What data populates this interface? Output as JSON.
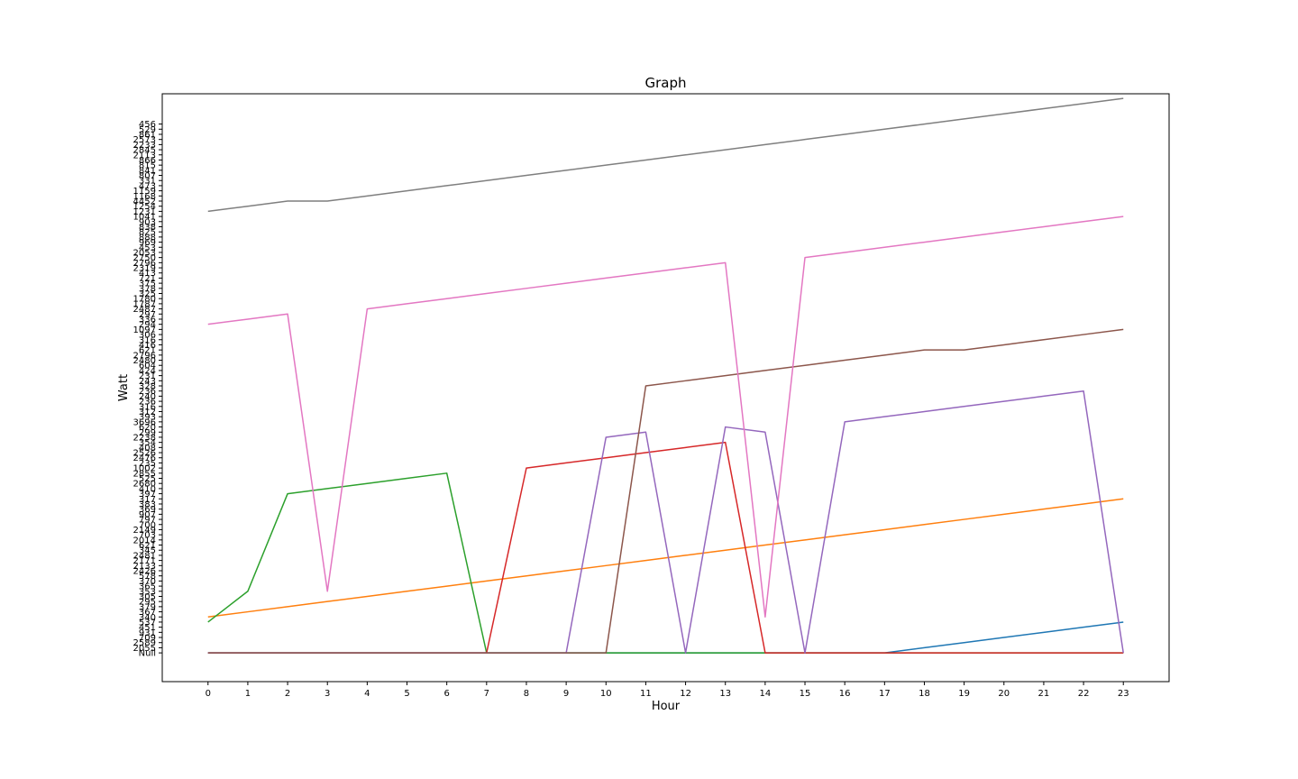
{
  "chart_data": {
    "type": "line",
    "title": "Graph",
    "xlabel": "Hour",
    "ylabel": "Watt",
    "grid": false,
    "legend": "none",
    "x": [
      0,
      1,
      2,
      3,
      4,
      5,
      6,
      7,
      8,
      9,
      10,
      11,
      12,
      13,
      14,
      15,
      16,
      17,
      18,
      19,
      20,
      21,
      22,
      23
    ],
    "xlim": [
      -1.15,
      24.15
    ],
    "ylim": [
      -5.6,
      108.9
    ],
    "y_tick_labels": [
      "Null",
      "2055",
      "2589",
      "709",
      "931",
      "451",
      "537",
      "340",
      "367",
      "379",
      "295",
      "305",
      "353",
      "365",
      "370",
      "578",
      "2426",
      "2133",
      "2171",
      "2481",
      "345",
      "621",
      "2014",
      "703",
      "2149",
      "700",
      "797",
      "907",
      "369",
      "383",
      "317",
      "397",
      "410",
      "2680",
      "525",
      "2855",
      "1002",
      "235",
      "2476",
      "2526",
      "408",
      "354",
      "2238",
      "299",
      "620",
      "3696",
      "393",
      "312",
      "316",
      "236",
      "240",
      "236",
      "328",
      "243",
      "231",
      "424",
      "604",
      "2480",
      "2796",
      "621",
      "416",
      "316",
      "306",
      "1097",
      "294",
      "336",
      "297",
      "2487",
      "1787",
      "1780",
      "325",
      "378",
      "375",
      "721",
      "413",
      "2319",
      "2796",
      "2750",
      "2053",
      "453",
      "969",
      "888",
      "825",
      "838",
      "903",
      "1041",
      "1231",
      "1254",
      "4452",
      "1168",
      "1159",
      "473",
      "331",
      "807",
      "841",
      "815",
      "866",
      "2113",
      "2845",
      "2233",
      "2573",
      "861",
      "529",
      "456"
    ],
    "series": [
      {
        "color": "#1f77b4",
        "values": [
          0,
          0,
          0,
          0,
          0,
          0,
          0,
          0,
          0,
          0,
          0,
          0,
          0,
          0,
          0,
          0,
          0,
          0,
          1,
          2,
          3,
          4,
          5,
          6
        ]
      },
      {
        "color": "#ff7f0e",
        "values": [
          7,
          8,
          9,
          10,
          11,
          12,
          13,
          14,
          15,
          16,
          17,
          18,
          19,
          20,
          21,
          22,
          23,
          24,
          25,
          26,
          27,
          28,
          29,
          30
        ]
      },
      {
        "color": "#2ca02c",
        "values": [
          6,
          12,
          31,
          32,
          33,
          34,
          35,
          0,
          0,
          0,
          0,
          0,
          0,
          0,
          0,
          0,
          0,
          0,
          0,
          0,
          0,
          0,
          0,
          0
        ]
      },
      {
        "color": "#d62728",
        "values": [
          0,
          0,
          0,
          0,
          0,
          0,
          0,
          0,
          36,
          37,
          38,
          39,
          40,
          41,
          0,
          0,
          0,
          0,
          0,
          0,
          0,
          0,
          0,
          0
        ]
      },
      {
        "color": "#9467bd",
        "values": [
          0,
          0,
          0,
          0,
          0,
          0,
          0,
          0,
          0,
          0,
          42,
          43,
          0,
          44,
          43,
          0,
          45,
          46,
          47,
          48,
          49,
          50,
          51,
          0
        ]
      },
      {
        "color": "#8c564b",
        "values": [
          0,
          0,
          0,
          0,
          0,
          0,
          0,
          0,
          0,
          0,
          0,
          52,
          53,
          54,
          55,
          56,
          57,
          58,
          59,
          59,
          60,
          61,
          62,
          63
        ]
      },
      {
        "color": "#e377c2",
        "values": [
          64,
          65,
          66,
          12,
          67,
          68,
          69,
          70,
          71,
          72,
          73,
          74,
          75,
          76,
          7,
          77,
          78,
          79,
          80,
          81,
          82,
          83,
          84,
          85
        ]
      },
      {
        "color": "#7f7f7f",
        "values": [
          86,
          87,
          88,
          88,
          89,
          90,
          91,
          92,
          93,
          94,
          95,
          96,
          97,
          98,
          99,
          100,
          101,
          102,
          103,
          104,
          105,
          106,
          107,
          108
        ]
      }
    ]
  }
}
